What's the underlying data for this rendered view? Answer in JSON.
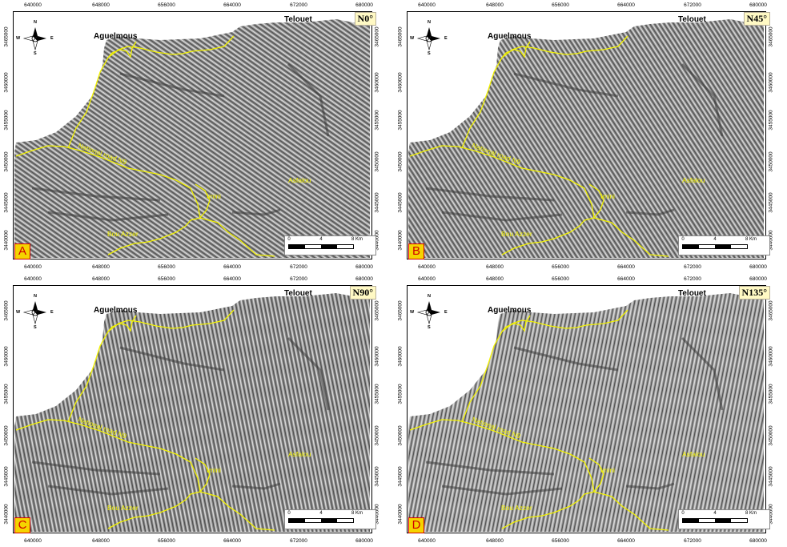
{
  "ticks": {
    "x": [
      "640000",
      "648000",
      "656000",
      "664000",
      "672000",
      "680000"
    ],
    "y": [
      "3465000",
      "3460000",
      "3455000",
      "3450000",
      "3445000",
      "3440000"
    ]
  },
  "places": {
    "north_town": "Aguelmous",
    "northeast_town": "Telouet",
    "road": "National road N9",
    "center_town": "Imini",
    "east_area": "Asfalou",
    "south_area": "Bou Azzer"
  },
  "compass": {
    "n": "N",
    "s": "S",
    "e": "E",
    "w": "W"
  },
  "scale": {
    "ticks": [
      "0",
      "4",
      "8 Km"
    ]
  },
  "panels": [
    {
      "label": "A",
      "angle": "N0°"
    },
    {
      "label": "B",
      "angle": "N45°"
    },
    {
      "label": "C",
      "angle": "N90°"
    },
    {
      "label": "D",
      "angle": "N135°"
    }
  ],
  "colors": {
    "road": "#f2f200",
    "relief_bg": "#8e8e8e",
    "label_box": "#f5d400",
    "label_text": "#d00000"
  }
}
